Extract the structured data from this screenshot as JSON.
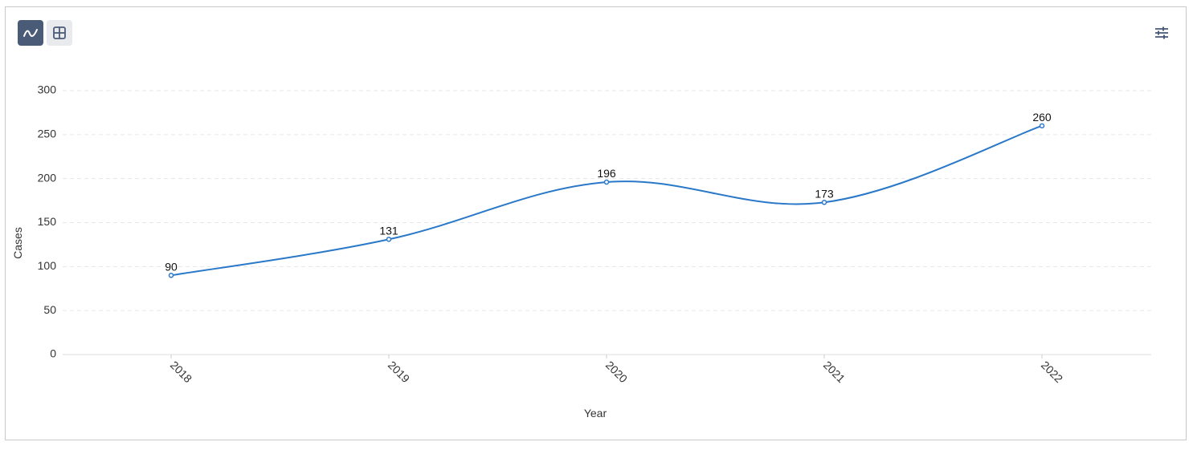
{
  "toolbar": {
    "chart_view_icon": "line-chart-icon",
    "table_view_icon": "table-grid-icon",
    "settings_icon": "sliders-icon"
  },
  "colors": {
    "line": "#2a78c8",
    "active_button": "#4a5b78",
    "grid": "#e6e6e6"
  },
  "chart_data": {
    "type": "line",
    "smooth": true,
    "categories": [
      "2018",
      "2019",
      "2020",
      "2021",
      "2022"
    ],
    "series": [
      {
        "values": [
          90,
          131,
          196,
          173,
          260
        ]
      }
    ],
    "data_labels": [
      "90",
      "131",
      "196",
      "173",
      "260"
    ],
    "xlabel": "Year",
    "ylabel": "Cases",
    "ylim": [
      0,
      300
    ],
    "yticks": [
      "0",
      "50",
      "100",
      "150",
      "200",
      "250",
      "300"
    ],
    "grid": "horizontal-dashed",
    "legend": "none"
  }
}
